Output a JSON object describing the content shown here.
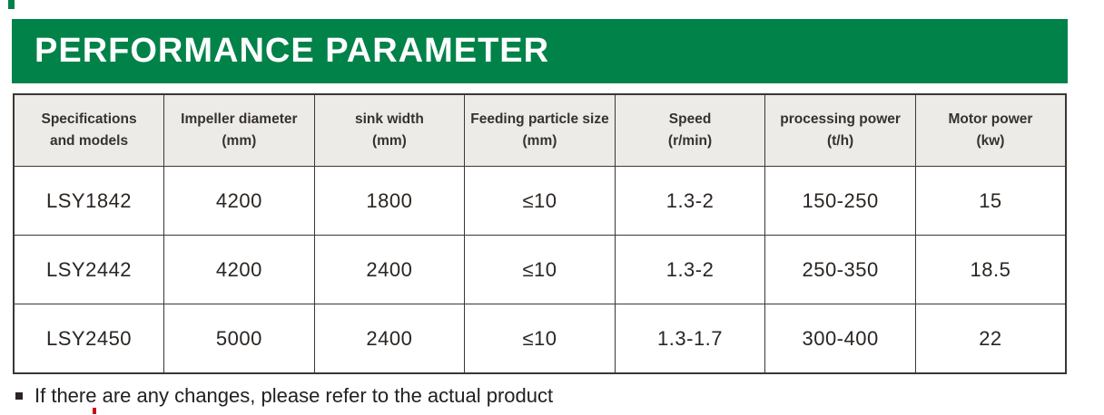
{
  "banner": {
    "title": "PERFORMANCE PARAMETER",
    "bg_color": "#008249",
    "text_color": "#ffffff"
  },
  "table": {
    "header_bg": "#edebe8",
    "border_color": "#3a3734",
    "columns": [
      {
        "line1": "Specifications",
        "line2": "and models"
      },
      {
        "line1": "Impeller diameter",
        "line2": "(mm)"
      },
      {
        "line1": "sink width",
        "line2": "(mm)"
      },
      {
        "line1": "Feeding particle size",
        "line2": "(mm)"
      },
      {
        "line1": "Speed",
        "line2": "(r/min)"
      },
      {
        "line1": "processing power",
        "line2": "(t/h)"
      },
      {
        "line1": "Motor power",
        "line2": "(kw)"
      }
    ],
    "rows": [
      [
        "LSY1842",
        "4200",
        "1800",
        "≤10",
        "1.3-2",
        "150-250",
        "15"
      ],
      [
        "LSY2442",
        "4200",
        "2400",
        "≤10",
        "1.3-2",
        "250-350",
        "18.5"
      ],
      [
        "LSY2450",
        "5000",
        "2400",
        "≤10",
        "1.3-1.7",
        "300-400",
        "22"
      ]
    ]
  },
  "footnote": {
    "text": "If there are any changes, please refer to the actual product"
  },
  "decorations": {
    "corner_mark_color": "#008249",
    "red_mark_color": "#d0021b"
  }
}
